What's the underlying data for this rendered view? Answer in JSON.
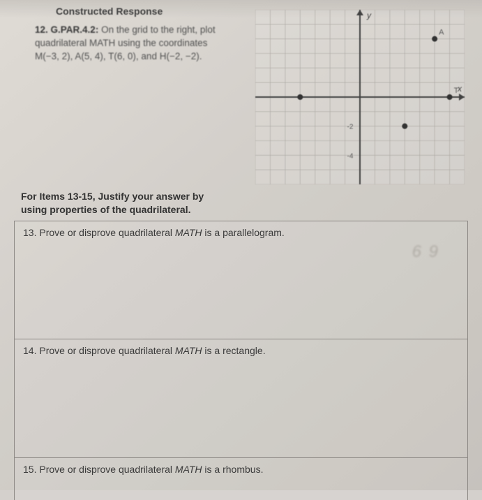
{
  "header_fragment": "Constructed Response",
  "q12": {
    "number": "12.",
    "standard": "G.PAR.4.2:",
    "text_line1": "On the grid to the right, plot",
    "text_line2": "quadrilateral MATH using the coordinates",
    "text_line3": "M(−3, 2), A(5, 4), T(6, 0), and H(−2, −2)."
  },
  "graph": {
    "xmin": -7,
    "xmax": 7,
    "ymin": -6,
    "ymax": 6,
    "grid_color": "#a8a49e",
    "axis_color": "#3a3a3a",
    "bg_color": "rgba(255,255,255,0.15)",
    "plotted_points": [
      {
        "x": 5,
        "y": 4,
        "label": "A"
      },
      {
        "x": 6,
        "y": 0,
        "label": "T"
      },
      {
        "x": 3,
        "y": -2,
        "label": ""
      },
      {
        "x": -4,
        "y": 0,
        "label": ""
      }
    ],
    "y_label_top": "y",
    "x_label_right": "x",
    "tick_labels": [
      {
        "x": -0.6,
        "y": -2,
        "text": "-2"
      },
      {
        "x": -0.6,
        "y": -4,
        "text": "-4"
      }
    ],
    "point_color": "#2a2a2a",
    "point_radius": 4
  },
  "instructions_line1": "For Items 13-15, Justify your answer by",
  "instructions_line2": "using properties of the quadrilateral.",
  "q13": {
    "number": "13.",
    "lead": "Prove or disprove quadrilateral ",
    "ital": "MATH",
    "tail": " is a parallelogram."
  },
  "q14": {
    "number": "14.",
    "lead": "Prove or disprove quadrilateral ",
    "ital": "MATH",
    "tail": " is a rectangle."
  },
  "q15": {
    "number": "15.",
    "lead": "Prove or disprove quadrilateral ",
    "ital": "MATH",
    "tail": " is a rhombus."
  },
  "scribble_text": "6 9"
}
